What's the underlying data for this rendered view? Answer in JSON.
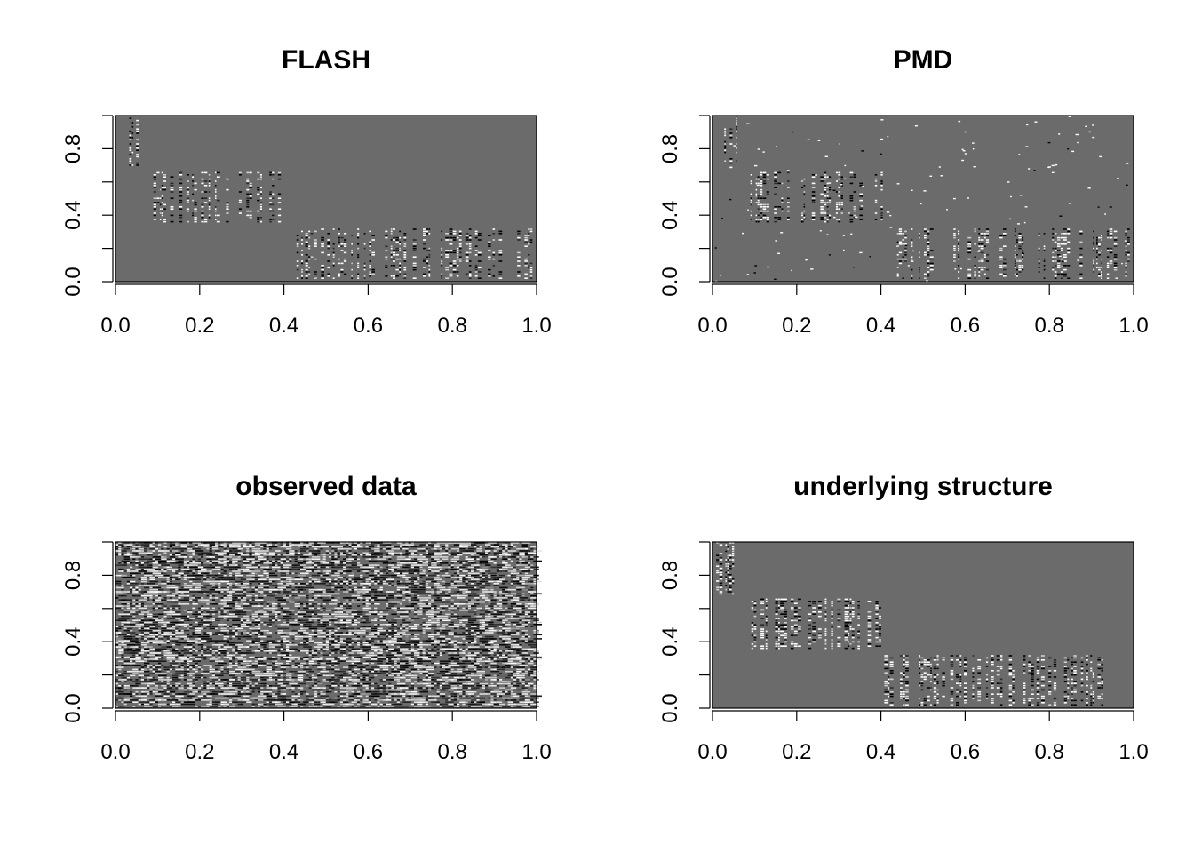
{
  "figure": {
    "background": "#ffffff",
    "base_gray": "#6b6b6b"
  },
  "chart_data": [
    {
      "type": "heatmap",
      "title": "FLASH",
      "xlim": [
        0,
        1
      ],
      "ylim": [
        0,
        1
      ],
      "x_ticks": [
        "0.0",
        "0.2",
        "0.4",
        "0.6",
        "0.8",
        "1.0"
      ],
      "y_ticks": [
        "0.0",
        "0.4",
        "0.8"
      ],
      "pattern": "estimated",
      "grid": false,
      "blocks": [
        {
          "x": [
            0.0,
            0.06
          ],
          "y": [
            0.68,
            1.0
          ]
        },
        {
          "x": [
            0.09,
            0.4
          ],
          "y": [
            0.36,
            0.66
          ]
        },
        {
          "x": [
            0.43,
            1.0
          ],
          "y": [
            0.02,
            0.32
          ]
        }
      ]
    },
    {
      "type": "heatmap",
      "title": "PMD",
      "xlim": [
        0,
        1
      ],
      "ylim": [
        0,
        1
      ],
      "x_ticks": [
        "0.0",
        "0.2",
        "0.4",
        "0.6",
        "0.8",
        "1.0"
      ],
      "y_ticks": [
        "0.0",
        "0.4",
        "0.8"
      ],
      "pattern": "estimated_noisy",
      "grid": false,
      "blocks": [
        {
          "x": [
            0.0,
            0.06
          ],
          "y": [
            0.68,
            1.0
          ]
        },
        {
          "x": [
            0.09,
            0.4
          ],
          "y": [
            0.36,
            0.66
          ]
        },
        {
          "x": [
            0.43,
            1.0
          ],
          "y": [
            0.02,
            0.32
          ]
        }
      ]
    },
    {
      "type": "heatmap",
      "title": "observed data",
      "xlim": [
        0,
        1
      ],
      "ylim": [
        0,
        1
      ],
      "x_ticks": [
        "0.0",
        "0.2",
        "0.4",
        "0.6",
        "0.8",
        "1.0"
      ],
      "y_ticks": [
        "0.0",
        "0.4",
        "0.8"
      ],
      "pattern": "noise",
      "grid": false,
      "blocks": []
    },
    {
      "type": "heatmap",
      "title": "underlying structure",
      "xlim": [
        0,
        1
      ],
      "ylim": [
        0,
        1
      ],
      "x_ticks": [
        "0.0",
        "0.2",
        "0.4",
        "0.6",
        "0.8",
        "1.0"
      ],
      "y_ticks": [
        "0.0",
        "0.4",
        "0.8"
      ],
      "pattern": "truth",
      "grid": false,
      "blocks": [
        {
          "x": [
            0.0,
            0.06
          ],
          "y": [
            0.68,
            1.0
          ]
        },
        {
          "x": [
            0.08,
            0.4
          ],
          "y": [
            0.36,
            0.66
          ]
        },
        {
          "x": [
            0.4,
            1.0
          ],
          "y": [
            0.02,
            0.32
          ]
        }
      ]
    }
  ]
}
